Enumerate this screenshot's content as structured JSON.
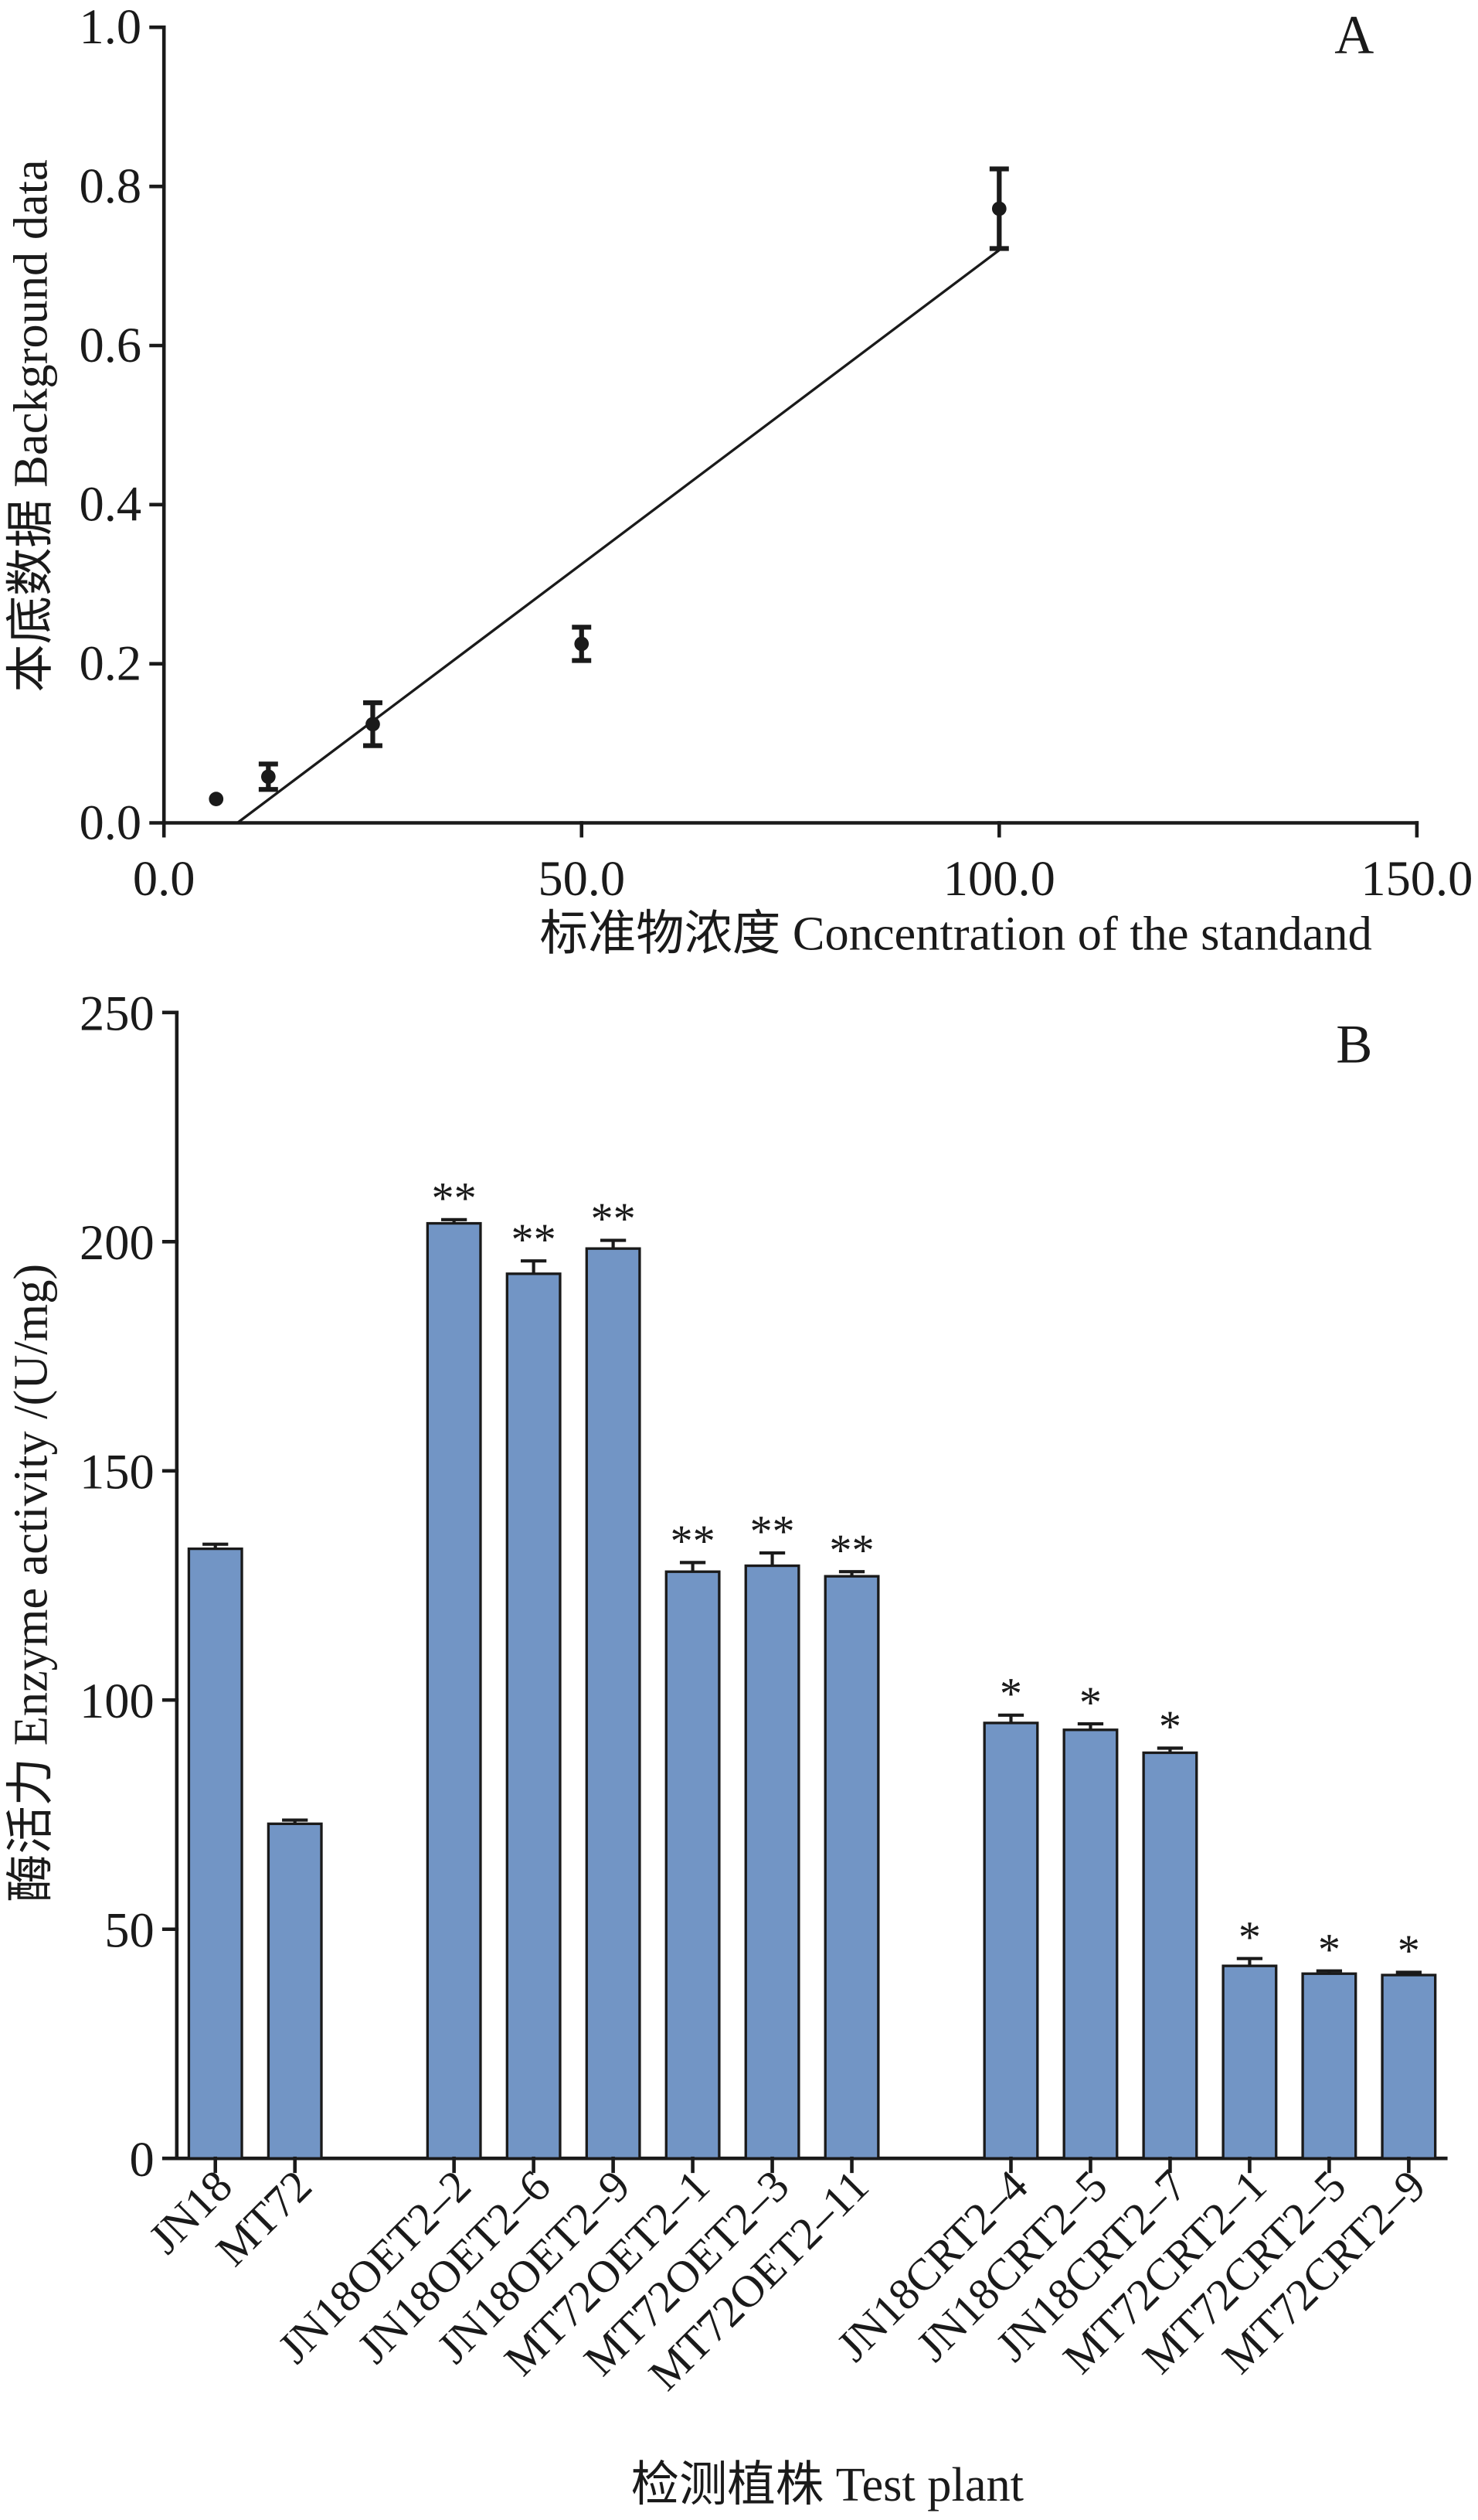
{
  "chart_data": [
    {
      "panel": "A",
      "type": "scatter",
      "xlabel": "标准物浓度 Concentration of the standand",
      "ylabel": "本底数据 Background data",
      "xlim": [
        0,
        150
      ],
      "ylim": [
        0,
        1.0
      ],
      "x_ticks": [
        "0.0",
        "50.0",
        "100.0",
        "150.0"
      ],
      "y_ticks": [
        "0.0",
        "0.2",
        "0.4",
        "0.6",
        "0.8",
        "1.0"
      ],
      "grid": false,
      "points": [
        {
          "x": 6.25,
          "y": 0.03,
          "error": 0
        },
        {
          "x": 12.5,
          "y": 0.058,
          "error": 0.016
        },
        {
          "x": 25,
          "y": 0.124,
          "error": 0.027
        },
        {
          "x": 50,
          "y": 0.225,
          "error": 0.021
        },
        {
          "x": 100,
          "y": 0.772,
          "error": 0.05
        }
      ],
      "fit_line": {
        "x": [
          8.8,
          100
        ],
        "y": [
          0,
          0.72
        ]
      }
    },
    {
      "panel": "B",
      "type": "bar",
      "xlabel": "检测植株 Test plant",
      "ylabel": "酶活力 Enzyme activity /(U/mg)",
      "ylim": [
        0,
        250
      ],
      "y_ticks": [
        "0",
        "50",
        "100",
        "150",
        "200",
        "250"
      ],
      "grid": false,
      "bar_color": "#7295c5",
      "groups": [
        {
          "bars": [
            {
              "label": "JN18",
              "value": 133,
              "error": 1
            },
            {
              "label": "MT72",
              "value": 73,
              "error": 0.8
            }
          ]
        },
        {
          "bars": [
            {
              "label": "JN18OET2–2",
              "value": 204,
              "error": 0.8,
              "significance": "**"
            },
            {
              "label": "JN18OET2–6",
              "value": 193,
              "error": 2.8,
              "significance": "**"
            },
            {
              "label": "JN18OET2–9",
              "value": 198.5,
              "error": 1.8,
              "significance": "**"
            },
            {
              "label": "MT72OET2–1",
              "value": 128,
              "error": 2,
              "significance": "**"
            },
            {
              "label": "MT72OET2–3",
              "value": 129.3,
              "error": 2.8,
              "significance": "**"
            },
            {
              "label": "MT72OET2–11",
              "value": 127,
              "error": 1,
              "significance": "**"
            }
          ]
        },
        {
          "bars": [
            {
              "label": "JN18CRT2–4",
              "value": 95,
              "error": 1.7,
              "significance": "*"
            },
            {
              "label": "JN18CRT2–5",
              "value": 93.5,
              "error": 1.3,
              "significance": "*"
            },
            {
              "label": "JN18CRT2–7",
              "value": 88.5,
              "error": 1,
              "significance": "*"
            },
            {
              "label": "MT72CRT2–1",
              "value": 42,
              "error": 1.6,
              "significance": "*"
            },
            {
              "label": "MT72CRT2–5",
              "value": 40.3,
              "error": 0.6,
              "significance": "*"
            },
            {
              "label": "MT72CRT2–9",
              "value": 40,
              "error": 0.6,
              "significance": "*"
            }
          ]
        }
      ]
    }
  ]
}
